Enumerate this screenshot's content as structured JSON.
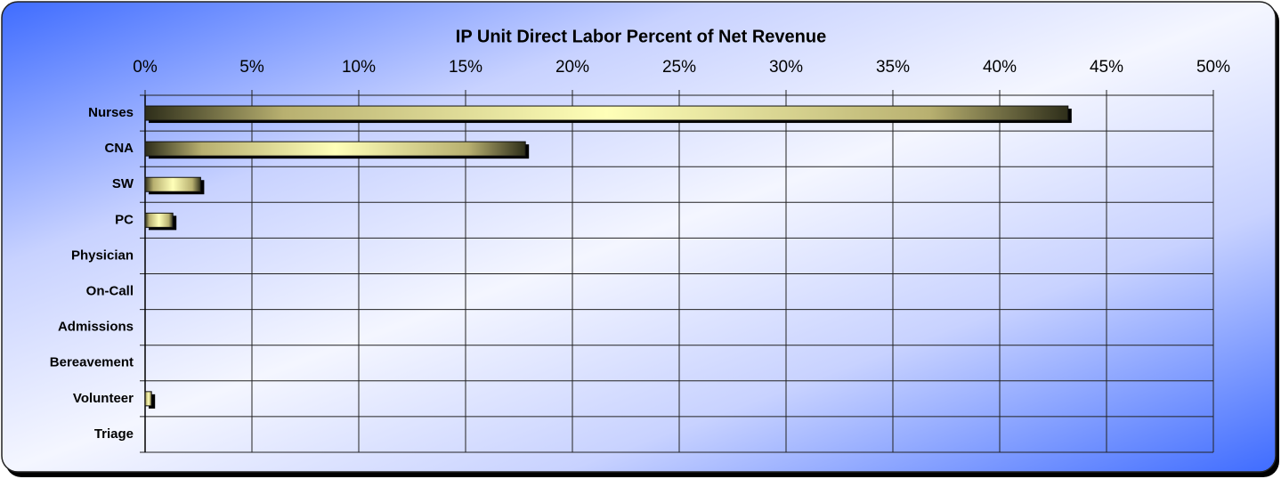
{
  "chart_data": {
    "type": "bar",
    "orientation": "horizontal",
    "title": "IP Unit Direct Labor Percent of Net Revenue",
    "categories": [
      "Nurses",
      "CNA",
      "SW",
      "PC",
      "Physician",
      "On-Call",
      "Admissions",
      "Bereavement",
      "Volunteer",
      "Triage"
    ],
    "values": [
      43.2,
      17.8,
      2.6,
      1.3,
      0,
      0,
      0,
      0,
      0.3,
      0
    ],
    "color": "#ffffb0",
    "xlim": [
      0,
      50
    ],
    "xticks": [
      {
        "value": 0,
        "label": "0%"
      },
      {
        "value": 5,
        "label": "5%"
      },
      {
        "value": 10,
        "label": "10%"
      },
      {
        "value": 15,
        "label": "15%"
      },
      {
        "value": 20,
        "label": "20%"
      },
      {
        "value": 25,
        "label": "25%"
      },
      {
        "value": 30,
        "label": "30%"
      },
      {
        "value": 35,
        "label": "35%"
      },
      {
        "value": 40,
        "label": "40%"
      },
      {
        "value": 45,
        "label": "45%"
      },
      {
        "value": 50,
        "label": "50%"
      }
    ],
    "grid": true
  }
}
